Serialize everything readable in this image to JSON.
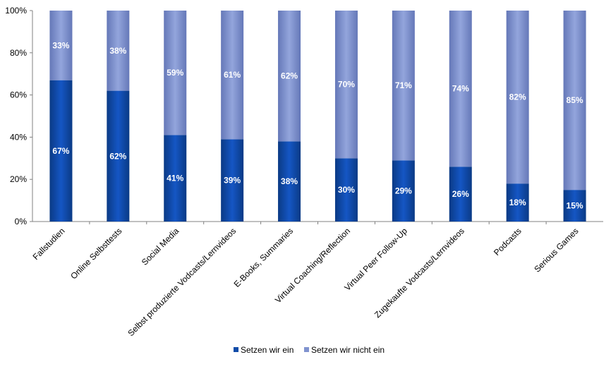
{
  "chart_data": {
    "type": "bar",
    "stacked": true,
    "percent": true,
    "categories": [
      "Fallstudien",
      "Online Selbsttests",
      "Social Media",
      "Selbst produzierte Vodcasts/Lernvideos",
      "E-Books, Summaries",
      "Virtual Coaching/Reflection",
      "Virtual Peer Follow-Up",
      "Zugekaufte Vodcasts/Lernvideos",
      "Podcasts",
      "Serious Games"
    ],
    "series": [
      {
        "name": "Setzen wir ein",
        "values": [
          67,
          62,
          41,
          39,
          38,
          30,
          29,
          26,
          18,
          15
        ],
        "labels": [
          "67%",
          "62%",
          "41%",
          "39%",
          "38%",
          "30%",
          "29%",
          "26%",
          "18%",
          "15%"
        ],
        "color": "#0f4ca8"
      },
      {
        "name": "Setzen wir nicht ein",
        "values": [
          33,
          38,
          59,
          61,
          62,
          70,
          71,
          74,
          82,
          85
        ],
        "labels": [
          "33%",
          "38%",
          "59%",
          "61%",
          "62%",
          "70%",
          "71%",
          "74%",
          "82%",
          "85%"
        ],
        "color": "#8093cf"
      }
    ],
    "yticks": [
      "0%",
      "20%",
      "40%",
      "60%",
      "80%",
      "100%"
    ],
    "ylim": [
      0,
      100
    ],
    "grid": false,
    "legend": "bottom"
  }
}
